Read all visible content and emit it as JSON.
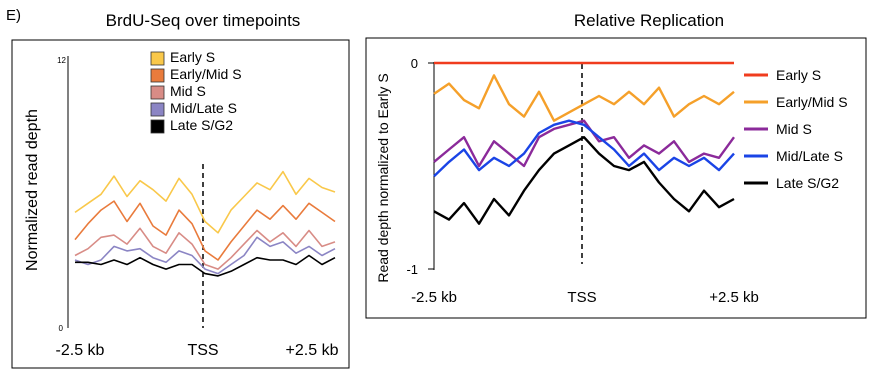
{
  "panel_label": "E)",
  "chart_data": [
    {
      "type": "line",
      "title": "BrdU-Seq over timepoints",
      "xlabel": "",
      "ylabel": "Normalized read depth",
      "x_tick_labels": [
        "-2.5 kb",
        "TSS",
        "+2.5 kb"
      ],
      "y_tick_labels": [
        "0",
        "12"
      ],
      "xlim": [
        -2.5,
        2.5
      ],
      "ylim": [
        0,
        12
      ],
      "center_line": "TSS (dashed)",
      "legend_position": "top-right",
      "x": [
        -2.5,
        -2.25,
        -2.0,
        -1.75,
        -1.5,
        -1.25,
        -1.0,
        -0.75,
        -0.5,
        -0.25,
        0.0,
        0.25,
        0.5,
        0.75,
        1.0,
        1.25,
        1.5,
        1.75,
        2.0,
        2.25,
        2.5
      ],
      "series": [
        {
          "name": "Early S",
          "color": "#f9c84a",
          "values": [
            5.1,
            5.5,
            5.9,
            6.7,
            5.8,
            6.5,
            6.1,
            5.6,
            6.6,
            5.9,
            4.7,
            4.2,
            5.2,
            5.8,
            6.4,
            6.1,
            6.9,
            5.9,
            6.6,
            6.2,
            6.0
          ]
        },
        {
          "name": "Early/Mid S",
          "color": "#e97b3c",
          "values": [
            3.9,
            4.6,
            5.2,
            5.6,
            4.7,
            5.5,
            4.5,
            4.1,
            5.2,
            4.6,
            3.4,
            3.0,
            3.8,
            4.5,
            5.2,
            4.8,
            5.4,
            4.8,
            5.5,
            5.1,
            4.7
          ]
        },
        {
          "name": "Mid S",
          "color": "#d88c86",
          "values": [
            3.2,
            3.5,
            4.0,
            4.1,
            3.7,
            4.4,
            3.6,
            3.3,
            4.2,
            3.7,
            2.8,
            2.6,
            3.1,
            3.7,
            4.3,
            3.8,
            4.2,
            3.6,
            4.3,
            3.6,
            3.8
          ]
        },
        {
          "name": "Mid/Late S",
          "color": "#8b85c4",
          "values": [
            3.0,
            2.8,
            3.0,
            3.6,
            3.4,
            3.5,
            3.1,
            2.9,
            3.4,
            3.2,
            2.6,
            2.4,
            2.8,
            3.2,
            4.0,
            3.6,
            3.8,
            3.3,
            3.6,
            3.2,
            3.5
          ]
        },
        {
          "name": "Late S/G2",
          "color": "#000000",
          "values": [
            2.9,
            2.9,
            2.8,
            3.0,
            2.8,
            3.1,
            2.8,
            2.6,
            2.8,
            2.8,
            2.4,
            2.3,
            2.5,
            2.8,
            3.1,
            3.0,
            3.0,
            2.8,
            3.2,
            2.8,
            3.1
          ]
        }
      ]
    },
    {
      "type": "line",
      "title": "Relative Replication",
      "xlabel": "",
      "ylabel": "Read depth normalized to Early S",
      "x_tick_labels": [
        "-2.5 kb",
        "TSS",
        "+2.5 kb"
      ],
      "y_tick_labels": [
        "0",
        "-1"
      ],
      "xlim": [
        -2.5,
        2.5
      ],
      "ylim": [
        -1,
        0
      ],
      "center_line": "TSS (dashed)",
      "legend_position": "right",
      "x": [
        -2.5,
        -2.25,
        -2.0,
        -1.75,
        -1.5,
        -1.25,
        -1.0,
        -0.75,
        -0.5,
        -0.25,
        0.0,
        0.25,
        0.5,
        0.75,
        1.0,
        1.25,
        1.5,
        1.75,
        2.0,
        2.25,
        2.5
      ],
      "series": [
        {
          "name": "Early S",
          "color": "#f03c1e",
          "values": [
            0,
            0,
            0,
            0,
            0,
            0,
            0,
            0,
            0,
            0,
            0,
            0,
            0,
            0,
            0,
            0,
            0,
            0,
            0,
            0,
            0
          ]
        },
        {
          "name": "Early/Mid S",
          "color": "#f5a02a",
          "values": [
            -0.15,
            -0.1,
            -0.18,
            -0.22,
            -0.06,
            -0.2,
            -0.26,
            -0.14,
            -0.28,
            -0.24,
            -0.2,
            -0.16,
            -0.2,
            -0.14,
            -0.2,
            -0.12,
            -0.26,
            -0.2,
            -0.16,
            -0.2,
            -0.14
          ]
        },
        {
          "name": "Mid S",
          "color": "#8b2a9a",
          "values": [
            -0.48,
            -0.42,
            -0.36,
            -0.5,
            -0.38,
            -0.44,
            -0.5,
            -0.36,
            -0.32,
            -0.3,
            -0.28,
            -0.38,
            -0.36,
            -0.46,
            -0.4,
            -0.44,
            -0.38,
            -0.48,
            -0.44,
            -0.46,
            -0.36
          ]
        },
        {
          "name": "Mid/Late S",
          "color": "#1a44e6",
          "values": [
            -0.55,
            -0.48,
            -0.42,
            -0.52,
            -0.46,
            -0.5,
            -0.44,
            -0.34,
            -0.3,
            -0.28,
            -0.3,
            -0.36,
            -0.42,
            -0.5,
            -0.44,
            -0.52,
            -0.46,
            -0.5,
            -0.46,
            -0.52,
            -0.44
          ]
        },
        {
          "name": "Late S/G2",
          "color": "#000000",
          "values": [
            -0.72,
            -0.76,
            -0.68,
            -0.78,
            -0.66,
            -0.74,
            -0.62,
            -0.52,
            -0.44,
            -0.4,
            -0.36,
            -0.44,
            -0.5,
            -0.52,
            -0.48,
            -0.58,
            -0.66,
            -0.72,
            -0.62,
            -0.7,
            -0.66
          ]
        }
      ]
    }
  ]
}
